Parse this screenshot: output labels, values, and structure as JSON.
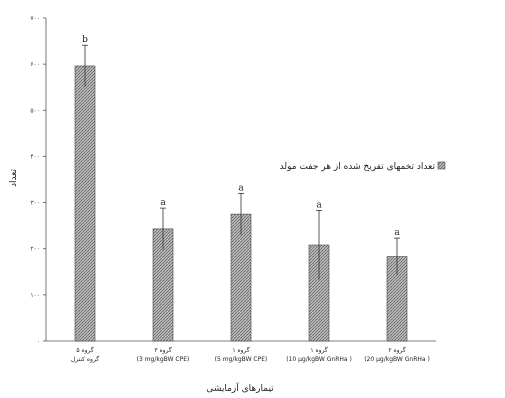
{
  "chart_data": {
    "type": "bar",
    "xlabel": "تیمارهای آزمایشی",
    "ylabel": "تعداد",
    "ylim": [
      0,
      700
    ],
    "yticks": [
      0,
      100,
      200,
      300,
      400,
      500,
      600,
      700
    ],
    "ytick_labels": [
      "۰",
      "۱۰۰",
      "۲۰۰",
      "۳۰۰",
      "۴۰۰",
      "۵۰۰",
      "۶۰۰",
      "۷۰۰"
    ],
    "categories": [
      {
        "line1": "گروه ۵",
        "line2": "گروه کنترل"
      },
      {
        "line1": "گروه ۳",
        "line2": "(3 mg/kgBW CPE)"
      },
      {
        "line1": "گروه ۱",
        "line2": "(5 mg/kgBW CPE)"
      },
      {
        "line1": "گروه ۱",
        "line2": "(10 µg/kgBW GnRHa )"
      },
      {
        "line1": "گروه ۲",
        "line2": "(20 µg/kgBW GnRHa )"
      }
    ],
    "series": [
      {
        "name": "تعداد تخمهای تفریخ شده از هر جفت مولد",
        "values": [
          596,
          243,
          275,
          208,
          183
        ],
        "errors": [
          45,
          45,
          45,
          75,
          40
        ],
        "significance": [
          "b",
          "a",
          "a",
          "a",
          "a"
        ]
      }
    ],
    "grid": false,
    "legend_position": "right",
    "colors": {
      "bar_fill": "#bdbdbd",
      "bar_hatch": "#5a5a5a",
      "axis": "#555555",
      "text": "#222222"
    }
  }
}
